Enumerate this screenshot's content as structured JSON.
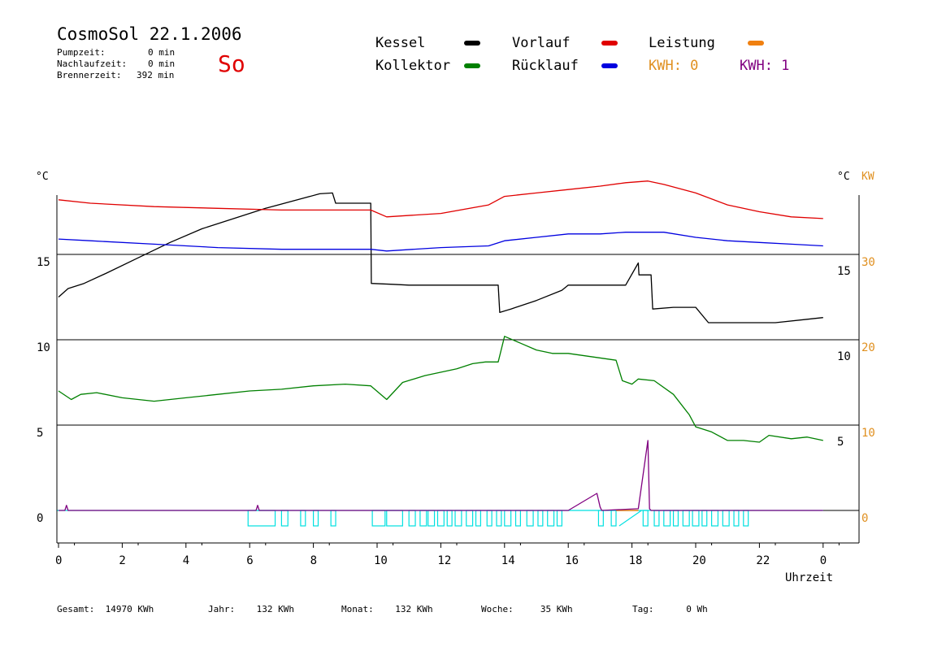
{
  "header": {
    "title": "CosmoSol 22.1.2006",
    "day": "So",
    "stats": [
      {
        "label": "Pumpzeit:",
        "value": "0 min"
      },
      {
        "label": "Nachlaufzeit:",
        "value": "0 min"
      },
      {
        "label": "Brennerzeit:",
        "value": "392 min"
      }
    ]
  },
  "legend": {
    "kessel": "Kessel",
    "kollektor": "Kollektor",
    "vorlauf": "Vorlauf",
    "ruecklauf": "Rücklauf",
    "leistung": "Leistung",
    "kwh0": "KWH: 0",
    "kwh1": "KWH: 1"
  },
  "colors": {
    "kessel": "#000000",
    "kollektor": "#008000",
    "vorlauf": "#e00000",
    "ruecklauf": "#0000e0",
    "leistung": "#f08010",
    "kwh0": "#e09020",
    "kwh1": "#800080",
    "pump": "#00e0e0"
  },
  "chart_data": {
    "type": "line",
    "title": "",
    "xlabel": "Uhrzeit",
    "ylabel_left": "°C",
    "ylabel_right": "°C",
    "ylabel_right_kw": "KW",
    "x_ticks": [
      "0",
      "2",
      "4",
      "6",
      "8",
      "10",
      "12",
      "14",
      "16",
      "18",
      "20",
      "22",
      "0"
    ],
    "left_ticks": [
      "0",
      "5",
      "10",
      "15"
    ],
    "right_c_ticks": [
      "5",
      "10",
      "15"
    ],
    "right_kw_ticks": [
      "0",
      "10",
      "20",
      "30"
    ],
    "xlim": [
      0,
      24
    ],
    "series": [
      {
        "key": "kessel",
        "name": "Kessel",
        "x": [
          0,
          0.3,
          0.8,
          1.5,
          2.5,
          3.5,
          4.5,
          5.5,
          6.5,
          7.5,
          8.2,
          8.6,
          8.7,
          9.8,
          9.82,
          10.5,
          11,
          13.8,
          13.85,
          14.2,
          15,
          15.8,
          16,
          17.5,
          17.8,
          18.2,
          18.22,
          18.6,
          18.65,
          19.3,
          20,
          20.4,
          21,
          22.5,
          23.5,
          24
        ],
        "y": [
          12.5,
          13,
          13.3,
          13.9,
          14.8,
          15.7,
          16.5,
          17.1,
          17.7,
          18.2,
          18.55,
          18.6,
          18,
          18,
          13.3,
          13.25,
          13.2,
          13.2,
          11.6,
          11.8,
          12.3,
          12.9,
          13.2,
          13.2,
          13.2,
          14.5,
          13.8,
          13.8,
          11.8,
          11.9,
          11.9,
          11.0,
          11.0,
          11.0,
          11.2,
          11.3
        ]
      },
      {
        "key": "kollektor",
        "name": "Kollektor",
        "x": [
          0,
          0.4,
          0.7,
          1.2,
          2,
          3,
          4,
          5,
          6,
          7,
          8,
          9,
          9.8,
          10.3,
          10.8,
          11.5,
          12.5,
          13,
          13.4,
          13.8,
          14,
          14.5,
          15,
          15.5,
          16,
          17.5,
          17.7,
          18,
          18.2,
          18.7,
          19.3,
          19.8,
          20,
          20.5,
          21,
          21.5,
          22,
          22.3,
          23,
          23.5,
          24
        ],
        "y": [
          7.0,
          6.5,
          6.8,
          6.9,
          6.6,
          6.4,
          6.6,
          6.8,
          7.0,
          7.1,
          7.3,
          7.4,
          7.3,
          6.5,
          7.5,
          7.9,
          8.3,
          8.6,
          8.7,
          8.7,
          10.2,
          9.8,
          9.4,
          9.2,
          9.2,
          8.8,
          7.6,
          7.4,
          7.7,
          7.6,
          6.8,
          5.6,
          4.9,
          4.6,
          4.1,
          4.1,
          4.0,
          4.4,
          4.2,
          4.3,
          4.1
        ]
      },
      {
        "key": "vorlauf",
        "name": "Vorlauf",
        "x": [
          0,
          1,
          3,
          5,
          7,
          9,
          9.8,
          10.3,
          12,
          13.5,
          14,
          15,
          16,
          17,
          17.8,
          18.5,
          19,
          20,
          21,
          22,
          23,
          24
        ],
        "y": [
          18.2,
          18.0,
          17.8,
          17.7,
          17.6,
          17.6,
          17.6,
          17.2,
          17.4,
          17.9,
          18.4,
          18.6,
          18.8,
          19.0,
          19.2,
          19.3,
          19.1,
          18.6,
          17.9,
          17.5,
          17.2,
          17.1
        ]
      },
      {
        "key": "ruecklauf",
        "name": "Rücklauf",
        "x": [
          0,
          1,
          3,
          5,
          7,
          9,
          9.8,
          10.3,
          12,
          13.5,
          14,
          15,
          16,
          17,
          17.8,
          18.5,
          19,
          20,
          21,
          22,
          23,
          24
        ],
        "y": [
          15.9,
          15.8,
          15.6,
          15.4,
          15.3,
          15.3,
          15.3,
          15.2,
          15.4,
          15.5,
          15.8,
          16.0,
          16.2,
          16.2,
          16.3,
          16.3,
          16.3,
          16.0,
          15.8,
          15.7,
          15.6,
          15.5
        ]
      },
      {
        "key": "kwh1",
        "name": "KWH: 1",
        "x": [
          0,
          0.2,
          0.25,
          0.3,
          6.2,
          6.25,
          6.3,
          15.9,
          16,
          16.9,
          17,
          17.05,
          18.2,
          18.5,
          18.55,
          18.6,
          24
        ],
        "y": [
          0,
          0,
          0.3,
          0,
          0,
          0.3,
          0,
          0,
          0,
          1.0,
          0.2,
          0,
          0.1,
          4.1,
          0.1,
          0,
          0
        ]
      }
    ]
  },
  "footer": {
    "gesamt": "Gesamt:  14970 KWh",
    "jahr": "Jahr:    132 KWh",
    "monat": "Monat:    132 KWh",
    "woche": "Woche:     35 KWh",
    "tag": "Tag:      0 Wh"
  }
}
